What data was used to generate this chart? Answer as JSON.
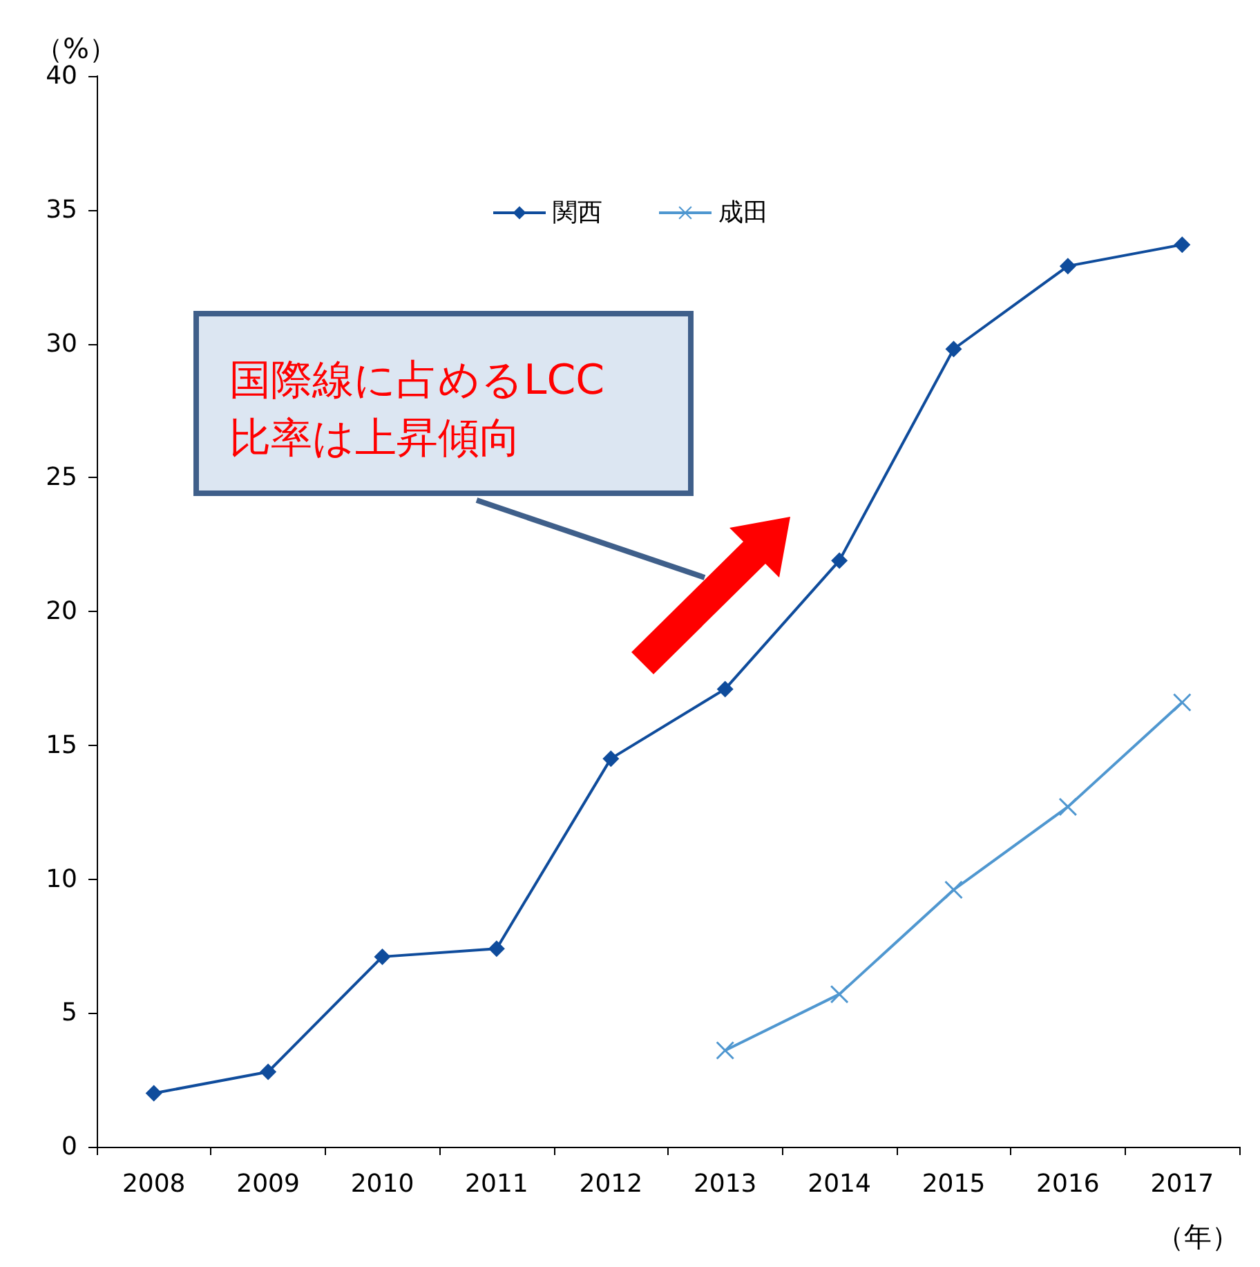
{
  "chart_data": {
    "type": "line",
    "ylabel": "（%）",
    "xlabel": "（年）",
    "categories": [
      "2008",
      "2009",
      "2010",
      "2011",
      "2012",
      "2013",
      "2014",
      "2015",
      "2016",
      "2017"
    ],
    "series": [
      {
        "name": "関西",
        "color": "#0f4c9c",
        "marker": "diamond",
        "values": [
          2.0,
          2.8,
          7.1,
          7.4,
          14.5,
          17.1,
          21.9,
          29.8,
          32.9,
          33.7
        ]
      },
      {
        "name": "成田",
        "color": "#4f97d0",
        "marker": "cross",
        "values": [
          null,
          null,
          null,
          null,
          null,
          3.6,
          5.7,
          9.6,
          12.7,
          16.6
        ]
      }
    ],
    "ylim": [
      0,
      40
    ],
    "yticks": [
      0,
      5,
      10,
      15,
      20,
      25,
      30,
      35,
      40
    ],
    "grid": false,
    "legend": "top",
    "annotations": [
      "国際線に占めるLCC\n比率は上昇傾向"
    ]
  }
}
